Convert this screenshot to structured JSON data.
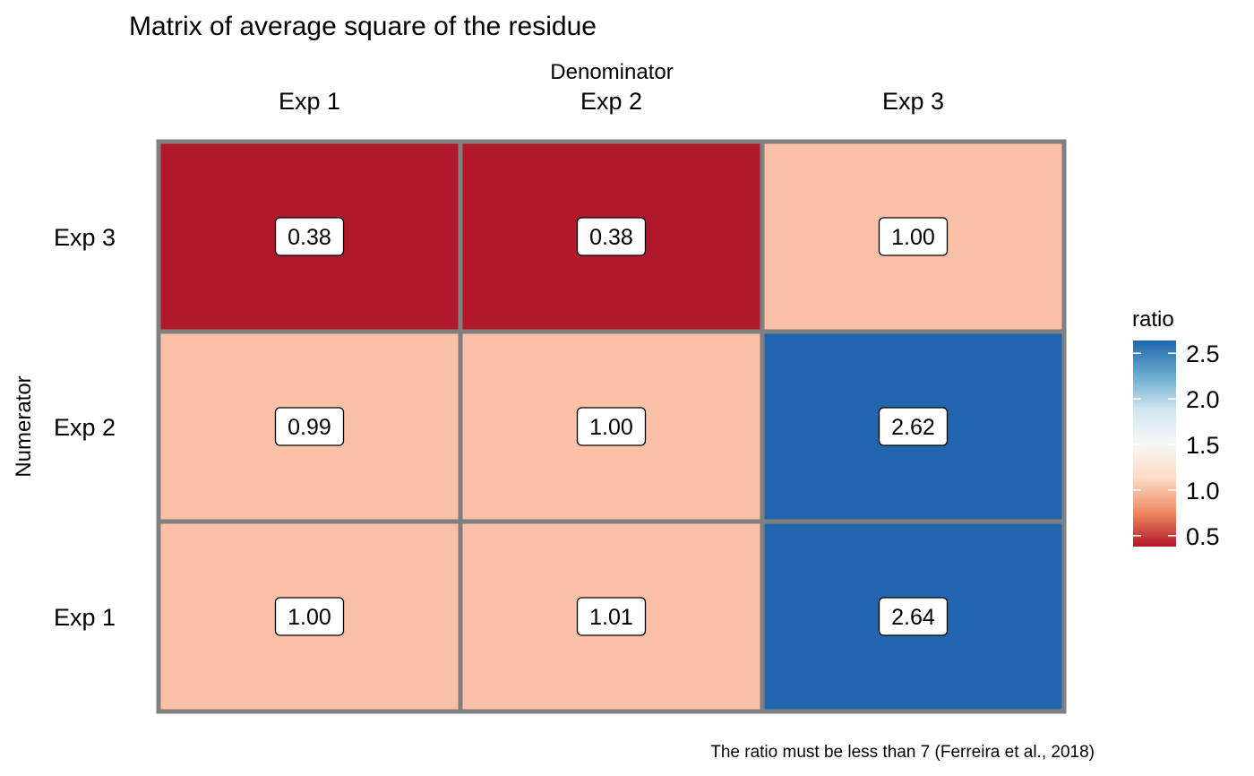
{
  "chart_data": {
    "type": "heatmap",
    "title": "Matrix of average square of the residue",
    "x_axis": {
      "title": "Denominator",
      "position": "top",
      "categories": [
        "Exp 1",
        "Exp 2",
        "Exp 3"
      ]
    },
    "y_axis": {
      "title": "Numerator",
      "categories": [
        "Exp 3",
        "Exp 2",
        "Exp 1"
      ]
    },
    "cells": [
      {
        "row": "Exp 3",
        "col": "Exp 1",
        "value": 0.38,
        "label": "0.38",
        "color": "#b2182b"
      },
      {
        "row": "Exp 3",
        "col": "Exp 2",
        "value": 0.38,
        "label": "0.38",
        "color": "#b2182b"
      },
      {
        "row": "Exp 3",
        "col": "Exp 3",
        "value": 1.0,
        "label": "1.00",
        "color": "#fac0a6"
      },
      {
        "row": "Exp 2",
        "col": "Exp 1",
        "value": 0.99,
        "label": "0.99",
        "color": "#fac0a6"
      },
      {
        "row": "Exp 2",
        "col": "Exp 2",
        "value": 1.0,
        "label": "1.00",
        "color": "#fac0a6"
      },
      {
        "row": "Exp 2",
        "col": "Exp 3",
        "value": 2.62,
        "label": "2.62",
        "color": "#2166ac"
      },
      {
        "row": "Exp 1",
        "col": "Exp 1",
        "value": 1.0,
        "label": "1.00",
        "color": "#fac0a6"
      },
      {
        "row": "Exp 1",
        "col": "Exp 2",
        "value": 1.01,
        "label": "1.01",
        "color": "#fac0a6"
      },
      {
        "row": "Exp 1",
        "col": "Exp 3",
        "value": 2.64,
        "label": "2.64",
        "color": "#2166ac"
      }
    ],
    "legend": {
      "title": "ratio",
      "placement": "right",
      "range": [
        0.38,
        2.64
      ],
      "ticks": [
        2.5,
        2.0,
        1.5,
        1.0,
        0.5
      ],
      "tick_labels": [
        "2.5",
        "2.0",
        "1.5",
        "1.0",
        "0.5"
      ],
      "gradient_colors": [
        "#2166ac",
        "#67a9cf",
        "#d1e5f0",
        "#f7f7f7",
        "#fddbc7",
        "#ef8a62",
        "#b2182b"
      ]
    },
    "caption": "The ratio must be less than 7 (Ferreira et al., 2018)",
    "tile_border_color": "#808080"
  }
}
